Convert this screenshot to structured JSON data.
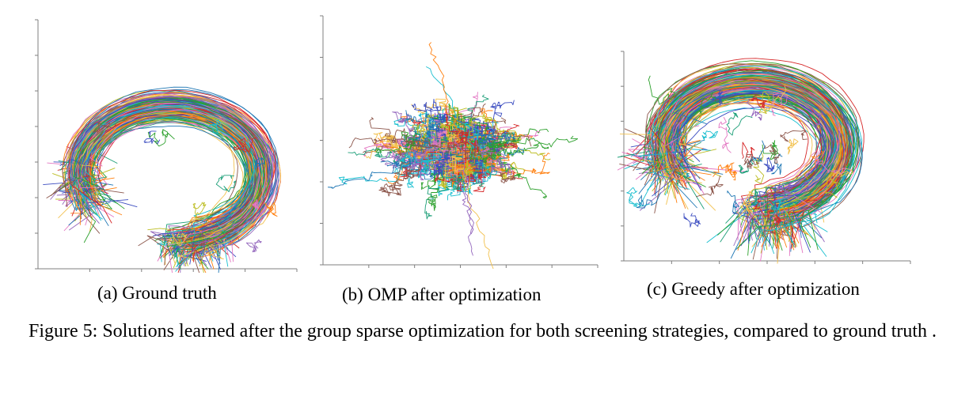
{
  "figure": {
    "caption": "Figure 5: Solutions learned after the group sparse optimization for both screening strategies, compared to ground truth .",
    "line_palette": [
      "#1f77b4",
      "#ff7f0e",
      "#2ca02c",
      "#d62728",
      "#9467bd",
      "#8c564b",
      "#e377c2",
      "#17becf",
      "#bcbd22",
      "#3b4cc0",
      "#f2c14e",
      "#1a9e77"
    ],
    "axis_color": "#7f7f7f"
  },
  "panels": [
    {
      "id": "a",
      "subcaption": "(a) Ground truth",
      "pattern": "arc"
    },
    {
      "id": "b",
      "subcaption": "(b) OMP after optimization",
      "pattern": "blob"
    },
    {
      "id": "c",
      "subcaption": "(c) Greedy after optimization",
      "pattern": "arc-noisy"
    }
  ]
}
